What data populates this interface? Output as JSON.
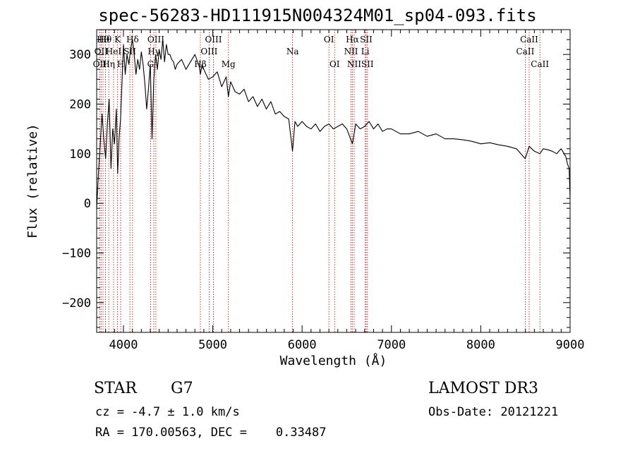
{
  "chart_data": {
    "type": "line",
    "title": "spec-56283-HD111915N004324M01_sp04-093.fits",
    "xlabel": "Wavelength (Å)",
    "ylabel": "Flux (relative)",
    "xlim": [
      3700,
      9000
    ],
    "ylim": [
      -260,
      350
    ],
    "xticks": [
      4000,
      5000,
      6000,
      7000,
      8000,
      9000
    ],
    "yticks": [
      -200,
      -100,
      0,
      100,
      200,
      300
    ],
    "series": [
      {
        "name": "flux",
        "x": [
          3700,
          3720,
          3740,
          3760,
          3780,
          3800,
          3820,
          3840,
          3860,
          3880,
          3900,
          3920,
          3935,
          3950,
          3968,
          3985,
          4000,
          4020,
          4040,
          4060,
          4080,
          4101,
          4120,
          4140,
          4160,
          4180,
          4200,
          4220,
          4240,
          4260,
          4280,
          4300,
          4320,
          4340,
          4360,
          4380,
          4400,
          4420,
          4440,
          4460,
          4480,
          4500,
          4520,
          4540,
          4560,
          4580,
          4600,
          4650,
          4700,
          4750,
          4800,
          4850,
          4861,
          4880,
          4900,
          4950,
          5000,
          5050,
          5100,
          5150,
          5175,
          5200,
          5250,
          5300,
          5350,
          5400,
          5450,
          5500,
          5550,
          5600,
          5650,
          5700,
          5750,
          5800,
          5850,
          5893,
          5920,
          5950,
          6000,
          6050,
          6100,
          6150,
          6200,
          6250,
          6300,
          6350,
          6400,
          6450,
          6500,
          6563,
          6600,
          6650,
          6700,
          6750,
          6800,
          6850,
          6900,
          6950,
          7000,
          7100,
          7200,
          7300,
          7400,
          7500,
          7600,
          7700,
          7800,
          7900,
          8000,
          8100,
          8200,
          8300,
          8400,
          8498,
          8542,
          8600,
          8662,
          8700,
          8750,
          8800,
          8850,
          8900,
          8950,
          8970,
          8990,
          9000
        ],
        "values": [
          -10,
          60,
          120,
          180,
          130,
          90,
          160,
          210,
          70,
          150,
          120,
          190,
          60,
          130,
          170,
          250,
          320,
          260,
          300,
          280,
          310,
          330,
          300,
          260,
          290,
          270,
          305,
          280,
          240,
          190,
          230,
          280,
          130,
          250,
          300,
          270,
          310,
          290,
          330,
          285,
          320,
          300,
          300,
          290,
          285,
          270,
          280,
          290,
          270,
          285,
          300,
          275,
          260,
          280,
          270,
          250,
          255,
          265,
          235,
          255,
          215,
          245,
          225,
          220,
          230,
          205,
          215,
          195,
          210,
          190,
          205,
          180,
          185,
          175,
          170,
          105,
          165,
          155,
          165,
          155,
          150,
          160,
          145,
          155,
          160,
          150,
          155,
          160,
          150,
          120,
          160,
          150,
          155,
          165,
          150,
          160,
          145,
          150,
          150,
          140,
          140,
          145,
          135,
          140,
          130,
          130,
          128,
          125,
          120,
          122,
          118,
          115,
          110,
          90,
          115,
          105,
          100,
          110,
          108,
          105,
          100,
          110,
          95,
          80,
          70,
          10
        ]
      }
    ],
    "lines": [
      {
        "wl": 3734,
        "label": "OII",
        "row": 2
      },
      {
        "wl": 3750,
        "label": "OII",
        "row": 1
      },
      {
        "wl": 3771,
        "label": "Hθ",
        "row": 0
      },
      {
        "wl": 3798,
        "label": "Hθ",
        "row": 0
      },
      {
        "wl": 3835,
        "label": "Hη",
        "row": 2
      },
      {
        "wl": 3889,
        "label": "HeI",
        "row": 1
      },
      {
        "wl": 3934,
        "label": "K",
        "row": 0
      },
      {
        "wl": 3968,
        "label": "H",
        "row": 2
      },
      {
        "wl": 4072,
        "label": "SII",
        "row": 1
      },
      {
        "wl": 4102,
        "label": "Hδ",
        "row": 0
      },
      {
        "wl": 4304,
        "label": "G",
        "row": 2
      },
      {
        "wl": 4340,
        "label": "Hγ",
        "row": 1
      },
      {
        "wl": 4363,
        "label": "OIII",
        "row": 0
      },
      {
        "wl": 4861,
        "label": "Hβ",
        "row": 2
      },
      {
        "wl": 4959,
        "label": "OIII",
        "row": 1
      },
      {
        "wl": 5007,
        "label": "OIII",
        "row": 0
      },
      {
        "wl": 5175,
        "label": "Mg",
        "row": 2
      },
      {
        "wl": 5893,
        "label": "Na",
        "row": 1
      },
      {
        "wl": 6300,
        "label": "OI",
        "row": 0
      },
      {
        "wl": 6364,
        "label": "OI",
        "row": 2
      },
      {
        "wl": 6548,
        "label": "NII",
        "row": 1
      },
      {
        "wl": 6563,
        "label": "Hα",
        "row": 0
      },
      {
        "wl": 6583,
        "label": "NII",
        "row": 2
      },
      {
        "wl": 6707,
        "label": "Li",
        "row": 1
      },
      {
        "wl": 6717,
        "label": "SII",
        "row": 0
      },
      {
        "wl": 6731,
        "label": "SII",
        "row": 2
      },
      {
        "wl": 8498,
        "label": "CaII",
        "row": 1
      },
      {
        "wl": 8542,
        "label": "CaII",
        "row": 0
      },
      {
        "wl": 8662,
        "label": "CaII",
        "row": 2
      }
    ]
  },
  "footer": {
    "object_class": "STAR",
    "subclass": "G7",
    "survey": "LAMOST DR3",
    "cz": "cz = -4.7 ± 1.0 km/s",
    "obs_date": "Obs-Date: 20121221",
    "coords": "RA = 170.00563, DEC =    0.33487"
  }
}
